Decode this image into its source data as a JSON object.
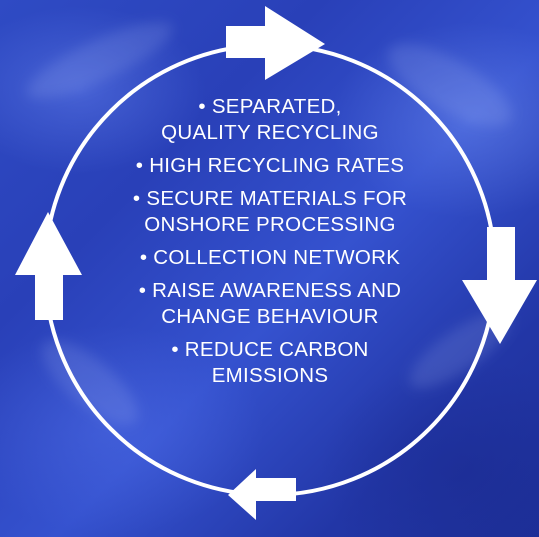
{
  "background_color": "#2f4bc4",
  "foreground_color": "#ffffff",
  "items": [
    {
      "lines": [
        "• SEPARATED,",
        "QUALITY RECYCLING"
      ]
    },
    {
      "lines": [
        "• HIGH RECYCLING RATES"
      ]
    },
    {
      "lines": [
        "• SECURE MATERIALS FOR",
        "ONSHORE PROCESSING"
      ]
    },
    {
      "lines": [
        "• COLLECTION NETWORK"
      ]
    },
    {
      "lines": [
        "• RAISE AWARENESS AND",
        "CHANGE BEHAVIOUR"
      ]
    },
    {
      "lines": [
        "• REDUCE CARBON",
        "EMISSIONS"
      ]
    }
  ],
  "arrows": [
    {
      "icon": "arrow-right-icon",
      "position": "top"
    },
    {
      "icon": "arrow-down-icon",
      "position": "right"
    },
    {
      "icon": "arrow-left-icon",
      "position": "bottom"
    },
    {
      "icon": "arrow-up-icon",
      "position": "left"
    }
  ]
}
